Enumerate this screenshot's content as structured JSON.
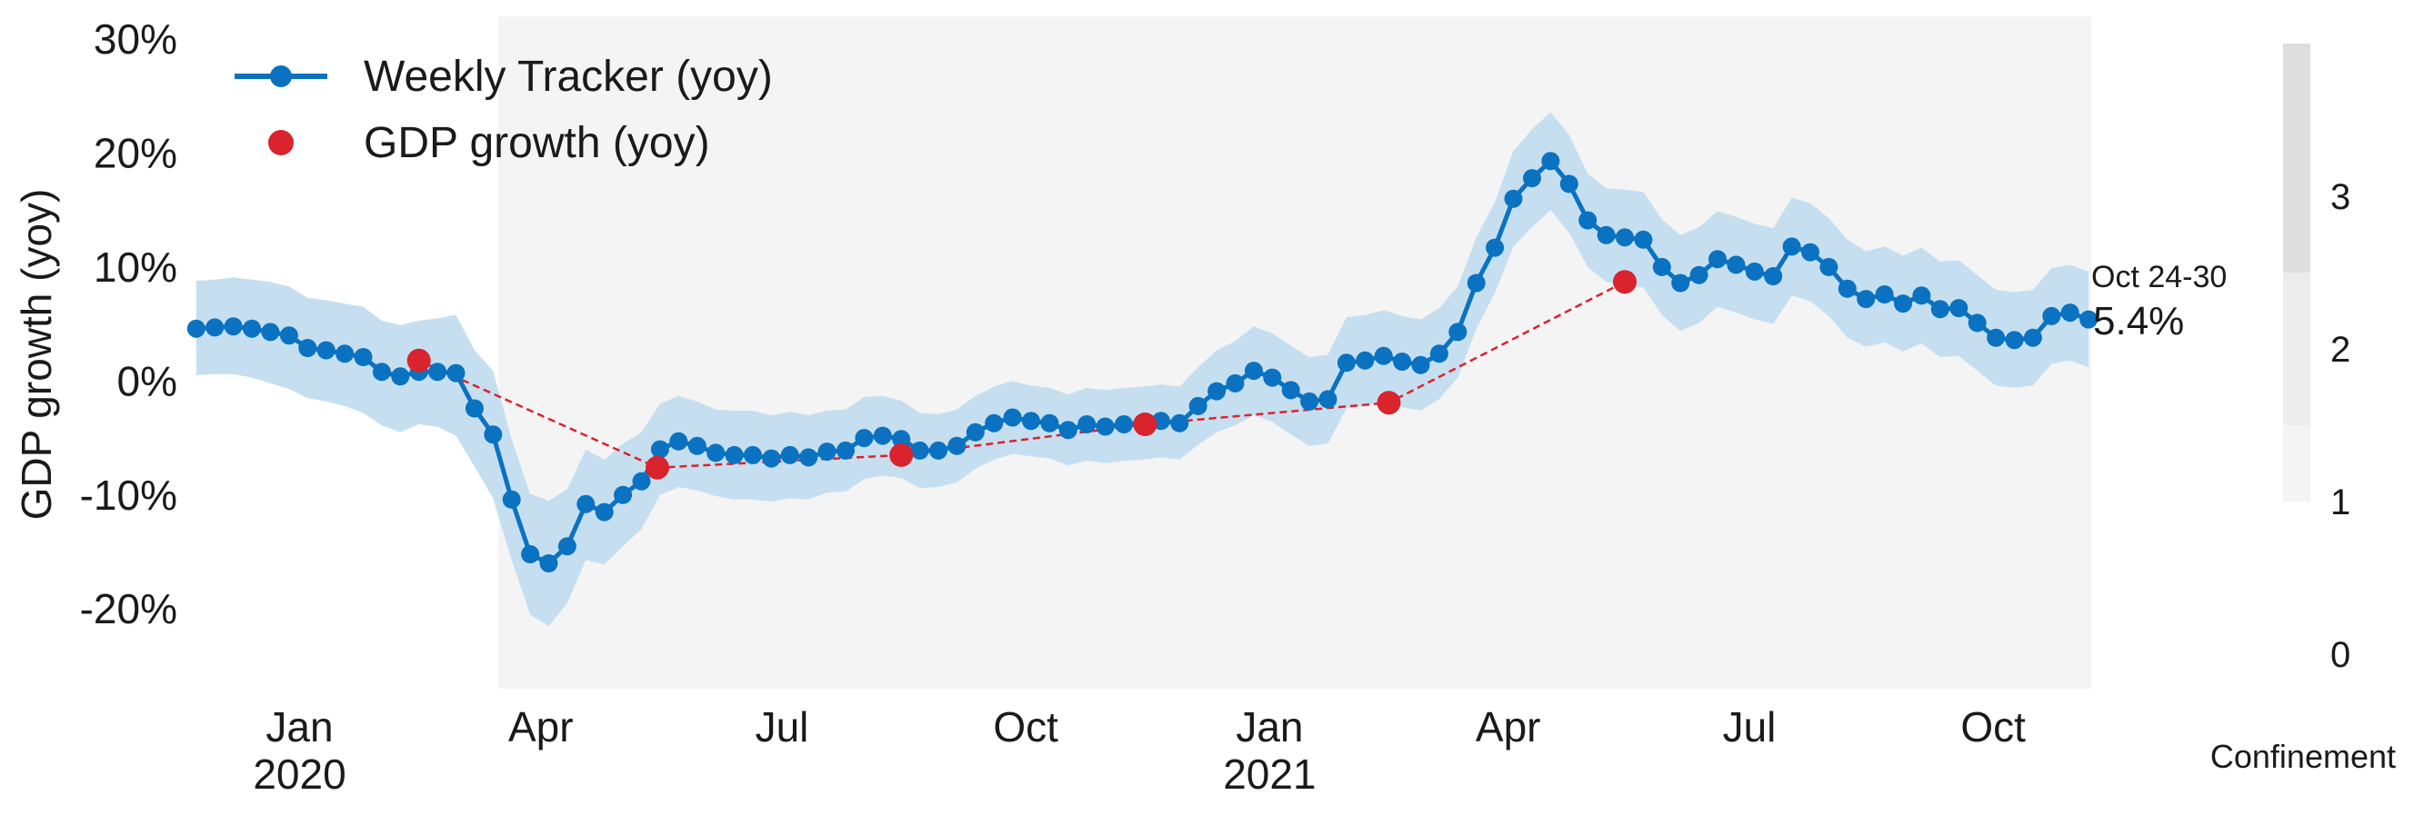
{
  "chart_data": {
    "type": "line",
    "ylabel": "GDP growth (yoy)",
    "ylim": [
      -0.27,
      0.32
    ],
    "yticks": [
      -0.2,
      -0.1,
      0,
      0.1,
      0.2,
      0.3
    ],
    "ytick_labels": [
      "-20%",
      "-10%",
      "0%",
      "10%",
      "20%",
      "30%"
    ],
    "xlim": [
      "2019-11-21",
      "2021-11-07"
    ],
    "xticks": [
      {
        "date": "2020-01-01",
        "label": "Jan",
        "sub": "2020"
      },
      {
        "date": "2020-04-01",
        "label": "Apr",
        "sub": ""
      },
      {
        "date": "2020-07-01",
        "label": "Jul",
        "sub": ""
      },
      {
        "date": "2020-10-01",
        "label": "Oct",
        "sub": ""
      },
      {
        "date": "2021-01-01",
        "label": "Jan",
        "sub": "2021"
      },
      {
        "date": "2021-04-01",
        "label": "Apr",
        "sub": ""
      },
      {
        "date": "2021-07-01",
        "label": "Jul",
        "sub": ""
      },
      {
        "date": "2021-10-01",
        "label": "Oct",
        "sub": ""
      }
    ],
    "grid": false,
    "legend": {
      "placement": "top-left",
      "entries": [
        "Weekly Tracker (yoy)",
        "GDP growth (yoy)"
      ]
    },
    "colors": {
      "tracker": "#0a72c1",
      "band": "#c6dff0",
      "gdp": "#d9232d",
      "confinement_levels": [
        "#f4f4f4",
        "#ececec",
        "#dedede"
      ]
    },
    "confinement_periods": [
      {
        "start": "2020-03-16",
        "end": "2021-11-07",
        "level": 1
      }
    ],
    "tracker": {
      "name": "Weekly Tracker (yoy)",
      "start": "2019-11-23",
      "step_days": 7,
      "values": [
        0.046,
        0.047,
        0.048,
        0.046,
        0.043,
        0.04,
        0.029,
        0.027,
        0.024,
        0.021,
        0.008,
        0.004,
        0.008,
        0.008,
        0.007,
        -0.024,
        -0.047,
        -0.104,
        -0.152,
        -0.16,
        -0.145,
        -0.108,
        -0.115,
        -0.1,
        -0.088,
        -0.06,
        -0.053,
        -0.057,
        -0.063,
        -0.065,
        -0.065,
        -0.068,
        -0.065,
        -0.067,
        -0.062,
        -0.061,
        -0.05,
        -0.048,
        -0.051,
        -0.061,
        -0.061,
        -0.057,
        -0.045,
        -0.037,
        -0.032,
        -0.035,
        -0.037,
        -0.043,
        -0.038,
        -0.04,
        -0.038,
        -0.037,
        -0.035,
        -0.037,
        -0.022,
        -0.009,
        -0.002,
        0.009,
        0.003,
        -0.008,
        -0.018,
        -0.016,
        0.016,
        0.018,
        0.022,
        0.017,
        0.014,
        0.024,
        0.043,
        0.086,
        0.117,
        0.16,
        0.178,
        0.193,
        0.173,
        0.141,
        0.128,
        0.126,
        0.124,
        0.1,
        0.086,
        0.093,
        0.107,
        0.102,
        0.096,
        0.092,
        0.118,
        0.113,
        0.1,
        0.081,
        0.072,
        0.076,
        0.068,
        0.075,
        0.063,
        0.064,
        0.051,
        0.038,
        0.036,
        0.038,
        0.057,
        0.06,
        0.054
      ]
    },
    "band": {
      "lower": [
        0.005,
        0.006,
        0.006,
        0.003,
        -0.002,
        -0.007,
        -0.015,
        -0.018,
        -0.022,
        -0.028,
        -0.039,
        -0.045,
        -0.038,
        -0.04,
        -0.048,
        -0.075,
        -0.103,
        -0.157,
        -0.205,
        -0.215,
        -0.195,
        -0.157,
        -0.161,
        -0.145,
        -0.13,
        -0.1,
        -0.093,
        -0.096,
        -0.101,
        -0.104,
        -0.104,
        -0.106,
        -0.103,
        -0.104,
        -0.098,
        -0.097,
        -0.086,
        -0.083,
        -0.085,
        -0.094,
        -0.093,
        -0.089,
        -0.077,
        -0.069,
        -0.064,
        -0.066,
        -0.068,
        -0.074,
        -0.07,
        -0.072,
        -0.07,
        -0.069,
        -0.067,
        -0.069,
        -0.056,
        -0.045,
        -0.039,
        -0.03,
        -0.036,
        -0.047,
        -0.057,
        -0.055,
        -0.024,
        -0.022,
        -0.018,
        -0.023,
        -0.026,
        -0.016,
        0.003,
        0.046,
        0.077,
        0.118,
        0.135,
        0.15,
        0.13,
        0.1,
        0.087,
        0.084,
        0.082,
        0.058,
        0.044,
        0.051,
        0.065,
        0.06,
        0.054,
        0.05,
        0.075,
        0.07,
        0.057,
        0.038,
        0.03,
        0.034,
        0.026,
        0.033,
        0.021,
        0.022,
        0.009,
        -0.004,
        -0.006,
        -0.004,
        0.015,
        0.018,
        0.012
      ],
      "upper": [
        0.088,
        0.089,
        0.091,
        0.089,
        0.087,
        0.083,
        0.073,
        0.071,
        0.068,
        0.065,
        0.053,
        0.049,
        0.053,
        0.055,
        0.058,
        0.027,
        0.009,
        -0.051,
        -0.099,
        -0.105,
        -0.095,
        -0.06,
        -0.069,
        -0.055,
        -0.045,
        -0.02,
        -0.013,
        -0.018,
        -0.025,
        -0.026,
        -0.026,
        -0.03,
        -0.027,
        -0.03,
        -0.026,
        -0.025,
        -0.014,
        -0.013,
        -0.017,
        -0.028,
        -0.029,
        -0.025,
        -0.013,
        -0.005,
        0.0,
        -0.004,
        -0.006,
        -0.012,
        -0.006,
        -0.008,
        -0.006,
        -0.005,
        -0.003,
        -0.005,
        0.012,
        0.027,
        0.035,
        0.048,
        0.042,
        0.031,
        0.021,
        0.023,
        0.056,
        0.058,
        0.062,
        0.057,
        0.054,
        0.064,
        0.083,
        0.126,
        0.157,
        0.202,
        0.221,
        0.236,
        0.216,
        0.182,
        0.169,
        0.168,
        0.166,
        0.142,
        0.128,
        0.135,
        0.149,
        0.144,
        0.138,
        0.134,
        0.161,
        0.156,
        0.143,
        0.124,
        0.114,
        0.118,
        0.11,
        0.117,
        0.105,
        0.106,
        0.093,
        0.08,
        0.078,
        0.08,
        0.099,
        0.102,
        0.096
      ]
    },
    "gdp": {
      "name": "GDP growth (yoy)",
      "points": [
        {
          "x": "2020-02-15",
          "y": 0.018
        },
        {
          "x": "2020-05-15",
          "y": -0.076
        },
        {
          "x": "2020-08-15",
          "y": -0.065
        },
        {
          "x": "2020-11-15",
          "y": -0.038
        },
        {
          "x": "2021-02-15",
          "y": -0.019
        },
        {
          "x": "2021-05-15",
          "y": 0.087
        }
      ]
    },
    "last_point": {
      "date_label": "Oct 24-30",
      "value_label": "5.4%"
    },
    "confinement_bar": {
      "label": "Confinement",
      "ticks": [
        "0",
        "1",
        "2",
        "3"
      ],
      "levels": [
        1,
        2,
        3
      ]
    }
  }
}
